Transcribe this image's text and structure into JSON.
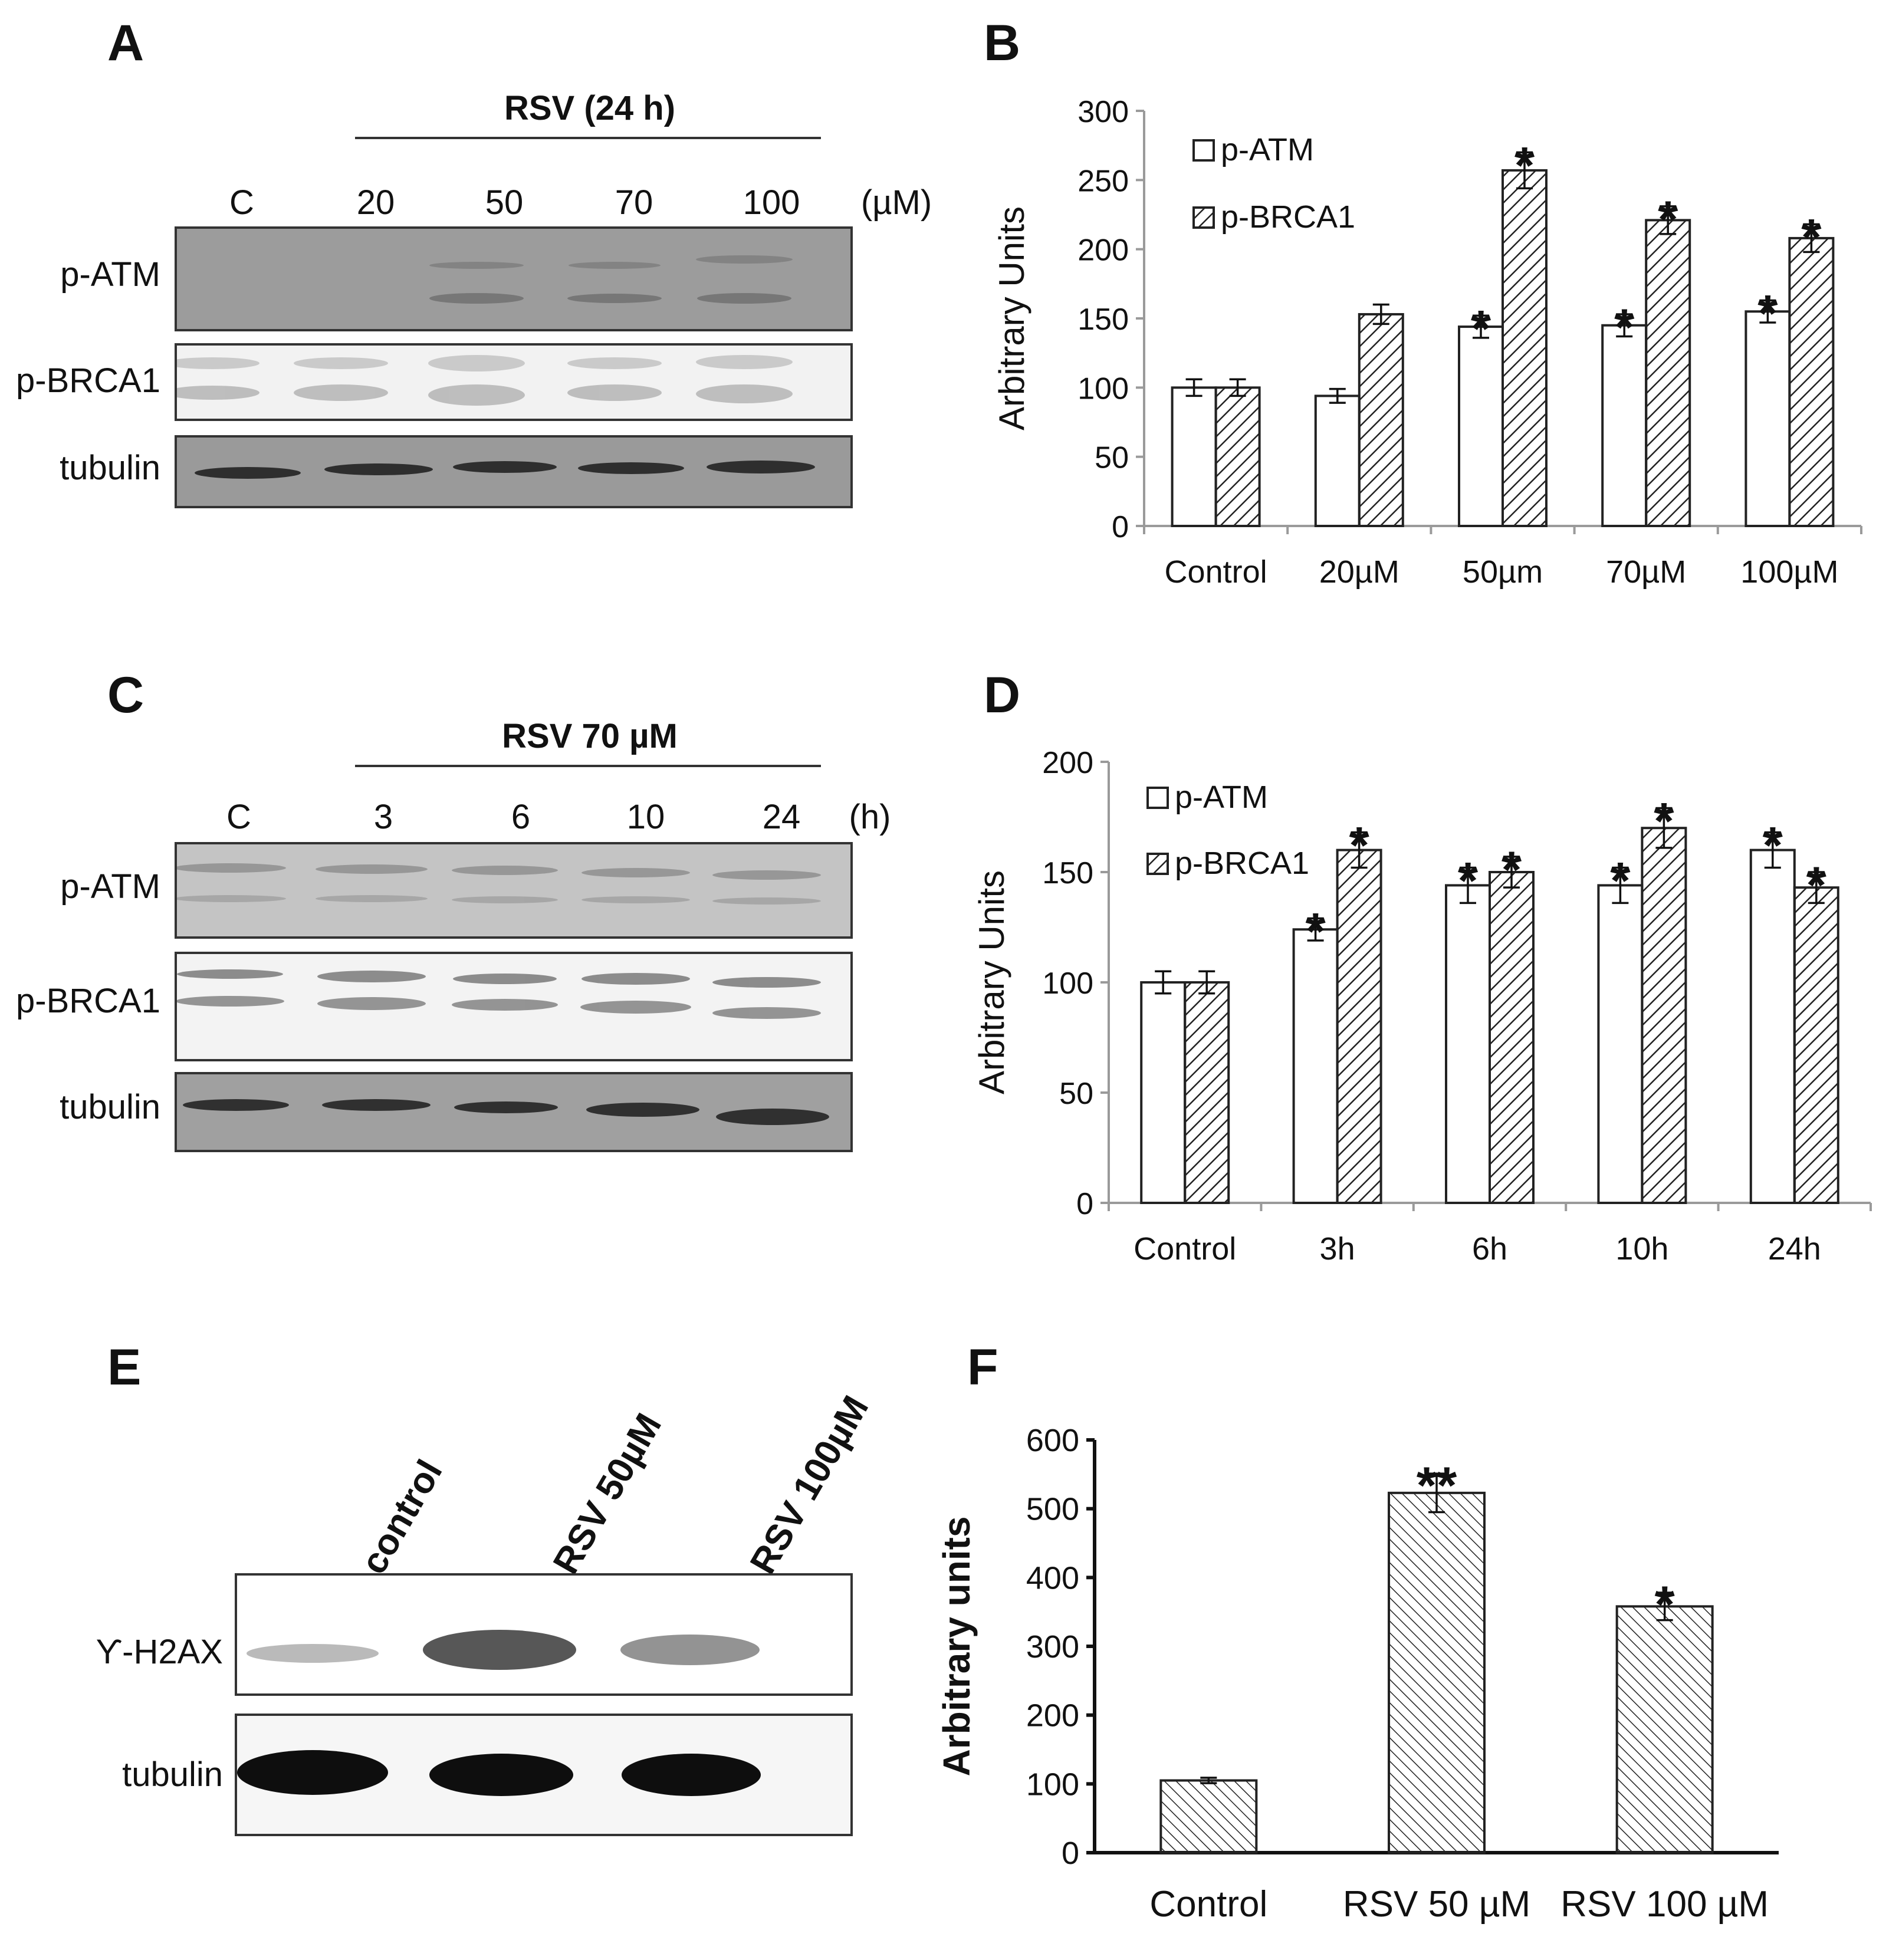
{
  "panels": {
    "A": {
      "label": "A",
      "header": "RSV (24 h)",
      "lanes": [
        "C",
        "20",
        "50",
        "70",
        "100"
      ],
      "unit": "(µM)",
      "rows": [
        "p-ATM",
        "p-BRCA1",
        "tubulin"
      ]
    },
    "C": {
      "label": "C",
      "header": "RSV 70 µM",
      "lanes": [
        "C",
        "3",
        "6",
        "10",
        "24"
      ],
      "unit": "(h)",
      "rows": [
        "p-ATM",
        "p-BRCA1",
        "tubulin"
      ]
    },
    "E": {
      "label": "E",
      "lanes": [
        "control",
        "RSV 50µM",
        "RSV 100µM"
      ],
      "rows": [
        "ϒ-H2AX",
        "tubulin"
      ]
    },
    "B": {
      "label": "B"
    },
    "D": {
      "label": "D"
    },
    "F": {
      "label": "F"
    }
  },
  "colors": {
    "bar_fill": "#ffffff",
    "stroke": "#222222",
    "axis": "#9a9a9a",
    "blot_dark": "#3a3a3a"
  },
  "chart_data": [
    {
      "id": "B",
      "type": "bar",
      "categories": [
        "Control",
        "20µM",
        "50µm",
        "70µM",
        "100µM"
      ],
      "series": [
        {
          "name": "p-ATM",
          "pattern": "open",
          "values": [
            100,
            94,
            144,
            145,
            155
          ],
          "errors": [
            6,
            5,
            8,
            8,
            8
          ],
          "annotations": [
            "",
            "",
            "*",
            "*",
            "*"
          ]
        },
        {
          "name": "p-BRCA1",
          "pattern": "hatched",
          "values": [
            100,
            153,
            257,
            221,
            208
          ],
          "errors": [
            6,
            7,
            13,
            10,
            10
          ],
          "annotations": [
            "",
            "",
            "*",
            "*",
            "*"
          ]
        }
      ],
      "ylabel": "Arbitrary Units",
      "ylim": [
        0,
        300
      ],
      "yticks": [
        0,
        50,
        100,
        150,
        200,
        250,
        300
      ],
      "legend": "top-left"
    },
    {
      "id": "D",
      "type": "bar",
      "categories": [
        "Control",
        "3h",
        "6h",
        "10h",
        "24h"
      ],
      "series": [
        {
          "name": "p-ATM",
          "pattern": "open",
          "values": [
            100,
            124,
            144,
            144,
            160
          ],
          "errors": [
            5,
            5,
            8,
            8,
            8
          ],
          "annotations": [
            "",
            "*",
            "*",
            "*",
            "*"
          ]
        },
        {
          "name": "p-BRCA1",
          "pattern": "hatched",
          "values": [
            100,
            160,
            150,
            170,
            143
          ],
          "errors": [
            5,
            8,
            7,
            9,
            7
          ],
          "annotations": [
            "",
            "*",
            "*",
            "*",
            "*"
          ]
        }
      ],
      "ylabel": "Arbitrary Units",
      "ylim": [
        0,
        200
      ],
      "yticks": [
        0,
        50,
        100,
        150,
        200
      ],
      "legend": "top-left"
    },
    {
      "id": "F",
      "type": "bar",
      "categories": [
        "Control",
        "RSV 50 µM",
        "RSV 100 µM"
      ],
      "series": [
        {
          "pattern": "hatched",
          "values": [
            105,
            523,
            358
          ],
          "errors": [
            4,
            28,
            20
          ],
          "annotations": [
            "",
            "**",
            "*"
          ]
        }
      ],
      "ylabel": "Arbitrary units",
      "ylim": [
        0,
        600
      ],
      "yticks": [
        0,
        100,
        200,
        300,
        400,
        500,
        600
      ]
    }
  ]
}
